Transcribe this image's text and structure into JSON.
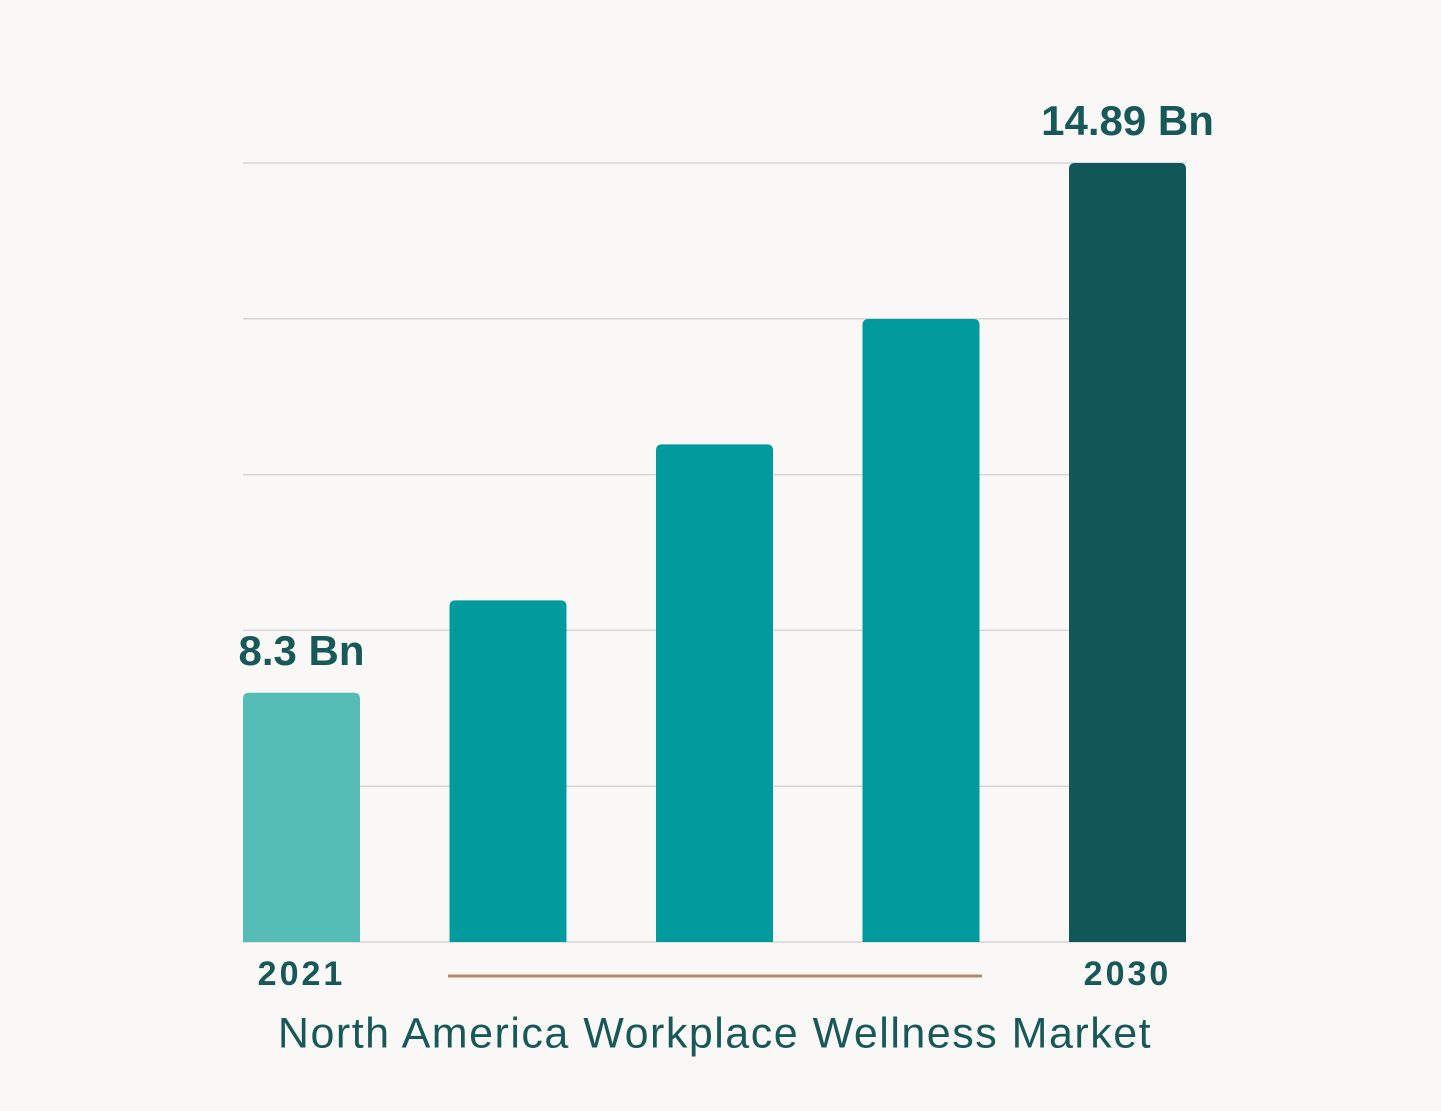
{
  "chart_data": {
    "type": "bar",
    "title": "North America Workplace Wellness Market",
    "categories": [
      "2021",
      null,
      null,
      null,
      "2030"
    ],
    "values": [
      8.3,
      9.45,
      11.39,
      12.95,
      14.89
    ],
    "value_labels": [
      "8.3 Bn",
      null,
      null,
      null,
      "14.89 Bn"
    ],
    "colors": [
      "#55bdb5",
      "#019b9d",
      "#019b9d",
      "#019b9d",
      "#115757"
    ],
    "ylim": [
      5.2,
      14.89
    ],
    "grid": true
  }
}
